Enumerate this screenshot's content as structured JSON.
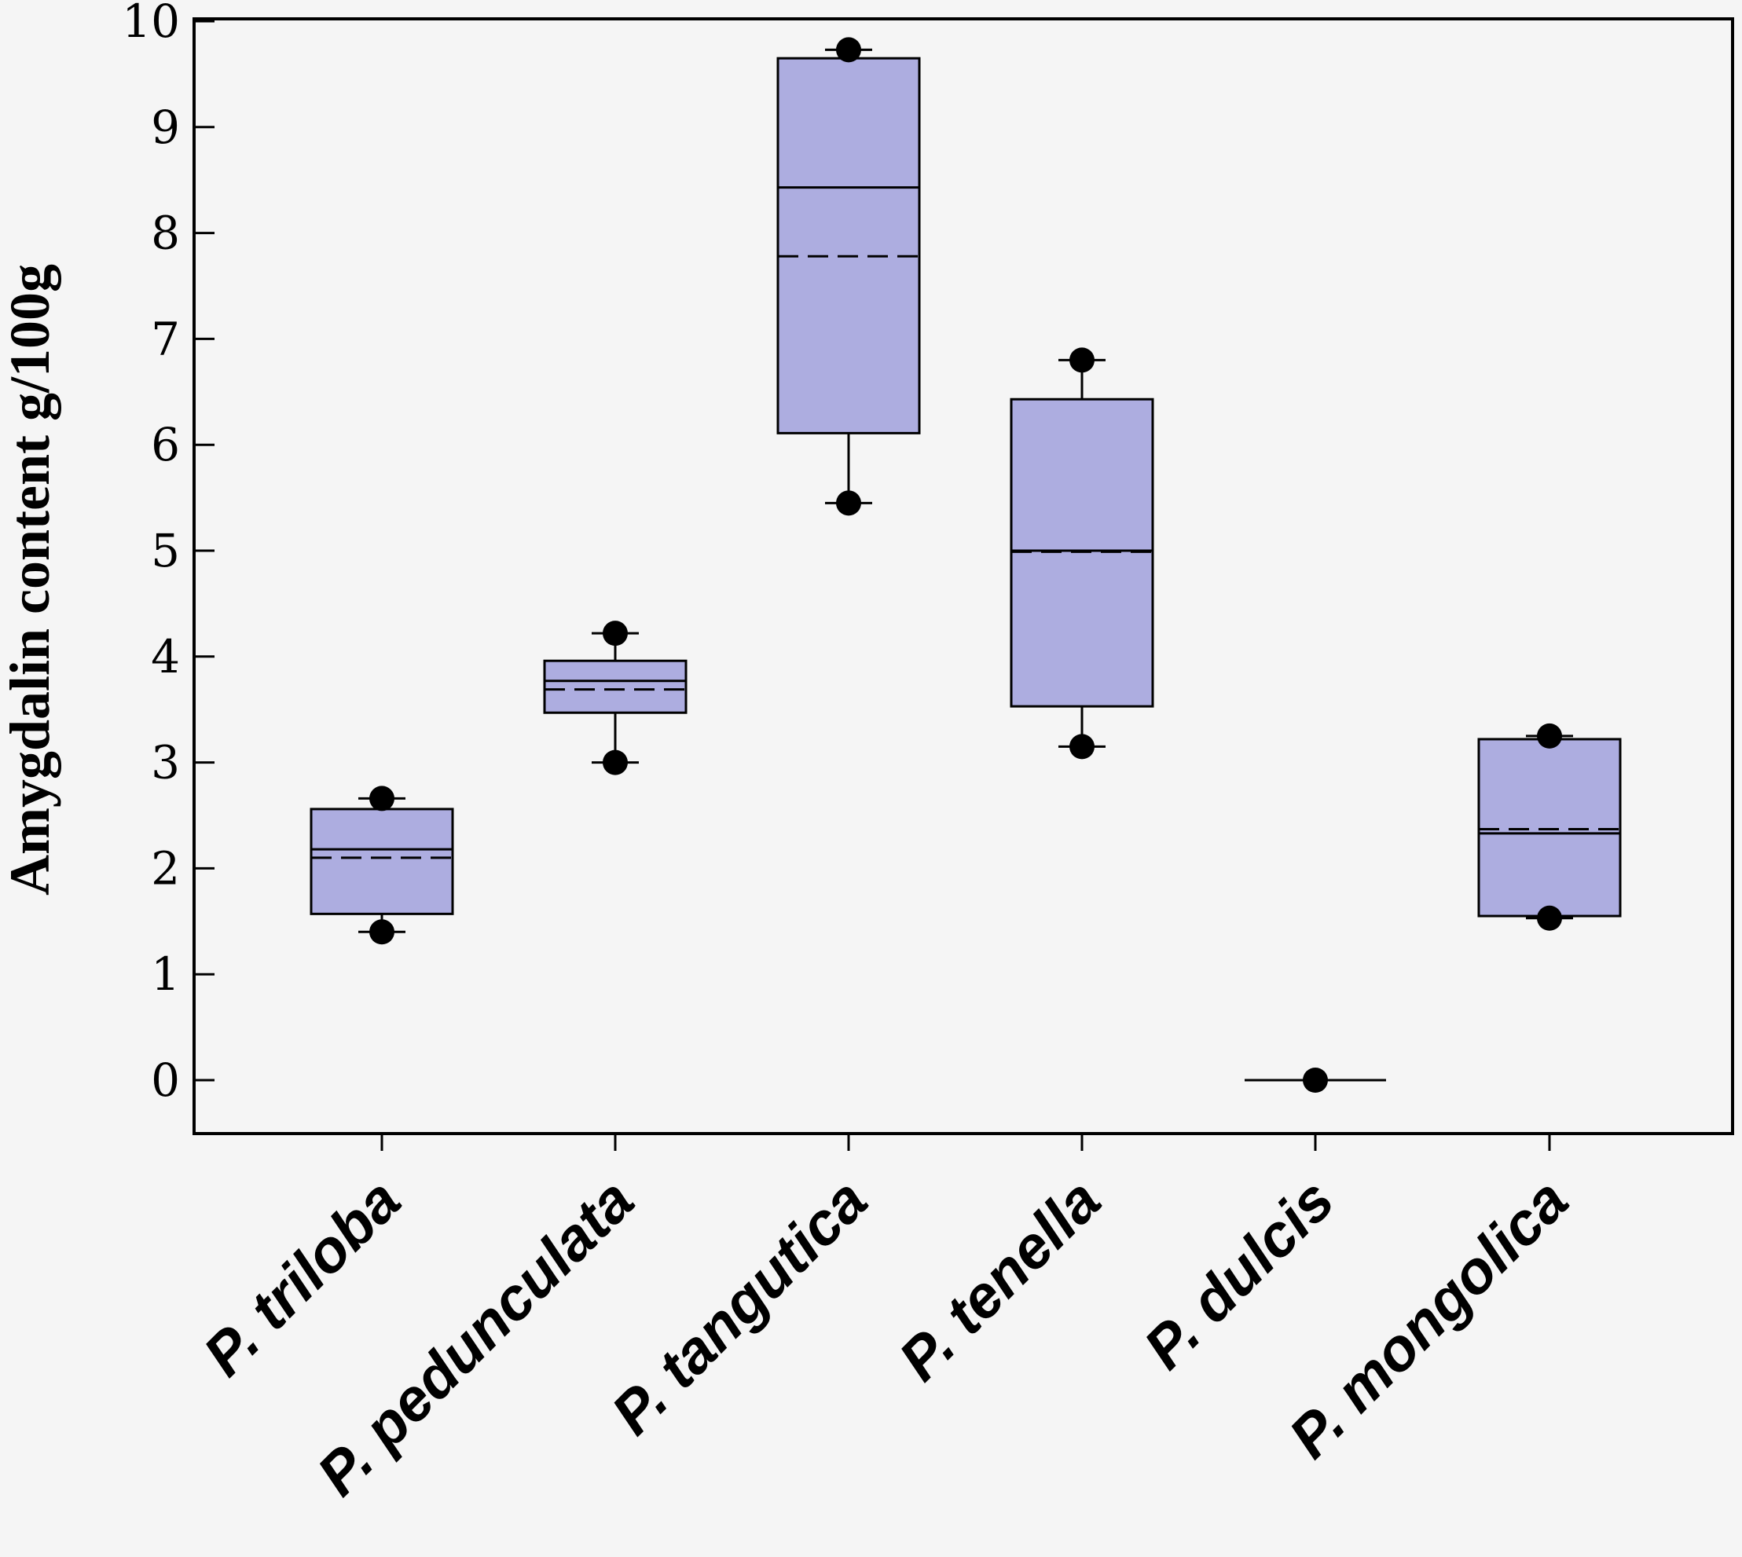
{
  "chart_data": {
    "type": "box",
    "title": "",
    "xlabel": "",
    "ylabel": "Amygdalin content g/100g",
    "ylim": [
      -0.5,
      10
    ],
    "yticks": [
      "0",
      "1",
      "2",
      "3",
      "4",
      "5",
      "6",
      "7",
      "8",
      "9",
      "10"
    ],
    "categories": [
      "P. triloba",
      "P. pedunculata",
      "P. tangutica",
      "P. tenella",
      "P. dulcis",
      "P. mongolica"
    ],
    "box_color": "#adade0",
    "series": [
      {
        "name": "P. triloba",
        "q1": 1.57,
        "median": 2.18,
        "mean": 2.1,
        "q3": 2.56,
        "whisker_low": 1.4,
        "whisker_high": 2.66,
        "outliers": [
          1.4,
          2.66
        ]
      },
      {
        "name": "P. pedunculata",
        "q1": 3.47,
        "median": 3.77,
        "mean": 3.69,
        "q3": 3.96,
        "whisker_low": 3.0,
        "whisker_high": 4.22,
        "outliers": [
          3.0,
          4.22
        ]
      },
      {
        "name": "P. tangutica",
        "q1": 6.11,
        "median": 8.43,
        "mean": 7.78,
        "q3": 9.65,
        "whisker_low": 5.45,
        "whisker_high": 9.73,
        "outliers": [
          5.45,
          9.73
        ]
      },
      {
        "name": "P. tenella",
        "q1": 3.53,
        "median": 5.0,
        "mean": 4.99,
        "q3": 6.43,
        "whisker_low": 3.15,
        "whisker_high": 6.8,
        "outliers": [
          3.15,
          6.8
        ]
      },
      {
        "name": "P. dulcis",
        "q1": 0.0,
        "median": 0.0,
        "mean": 0.0,
        "q3": 0.0,
        "whisker_low": 0.0,
        "whisker_high": 0.0,
        "outliers": [
          0.0
        ]
      },
      {
        "name": "P. mongolica",
        "q1": 1.55,
        "median": 2.33,
        "mean": 2.37,
        "q3": 3.22,
        "whisker_low": 1.53,
        "whisker_high": 3.25,
        "outliers": [
          1.53,
          3.25
        ]
      }
    ]
  }
}
